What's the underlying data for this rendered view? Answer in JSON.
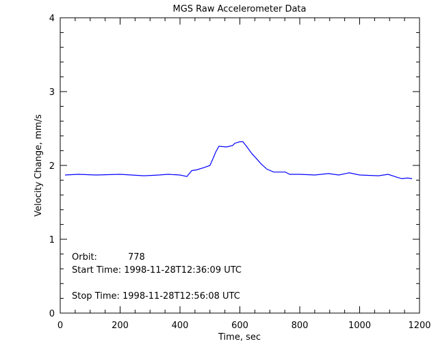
{
  "chart_data": {
    "type": "line",
    "title": "MGS Raw Accelerometer Data",
    "xlabel": "Time, sec",
    "ylabel": "Velocity Change, mm/s",
    "xlim": [
      0,
      1200
    ],
    "ylim": [
      0,
      4
    ],
    "xticks": [
      0,
      200,
      400,
      600,
      800,
      1000,
      1200
    ],
    "yticks": [
      0,
      1,
      2,
      3,
      4
    ],
    "grid": false,
    "line_color": "#0000ff",
    "series": [
      {
        "x": [
          16,
          60,
          120,
          200,
          280,
          330,
          360,
          400,
          423,
          439,
          455,
          480,
          500,
          512,
          519,
          530,
          555,
          576,
          583,
          600,
          610,
          622,
          640,
          656,
          671,
          690,
          713,
          752,
          766,
          800,
          850,
          896,
          930,
          965,
          1000,
          1063,
          1095,
          1125,
          1141,
          1160,
          1175
        ],
        "y": [
          1.87,
          1.88,
          1.87,
          1.88,
          1.86,
          1.87,
          1.88,
          1.87,
          1.85,
          1.93,
          1.94,
          1.97,
          2.0,
          2.11,
          2.18,
          2.26,
          2.25,
          2.27,
          2.3,
          2.32,
          2.32,
          2.26,
          2.16,
          2.09,
          2.02,
          1.95,
          1.91,
          1.91,
          1.88,
          1.88,
          1.87,
          1.89,
          1.87,
          1.9,
          1.87,
          1.86,
          1.88,
          1.84,
          1.82,
          1.83,
          1.82
        ]
      }
    ]
  },
  "annotations": {
    "orbit_label": "Orbit:",
    "orbit_value": "778",
    "start_time": "Start Time: 1998-11-28T12:36:09 UTC",
    "stop_time": "Stop Time: 1998-11-28T12:56:08 UTC"
  }
}
